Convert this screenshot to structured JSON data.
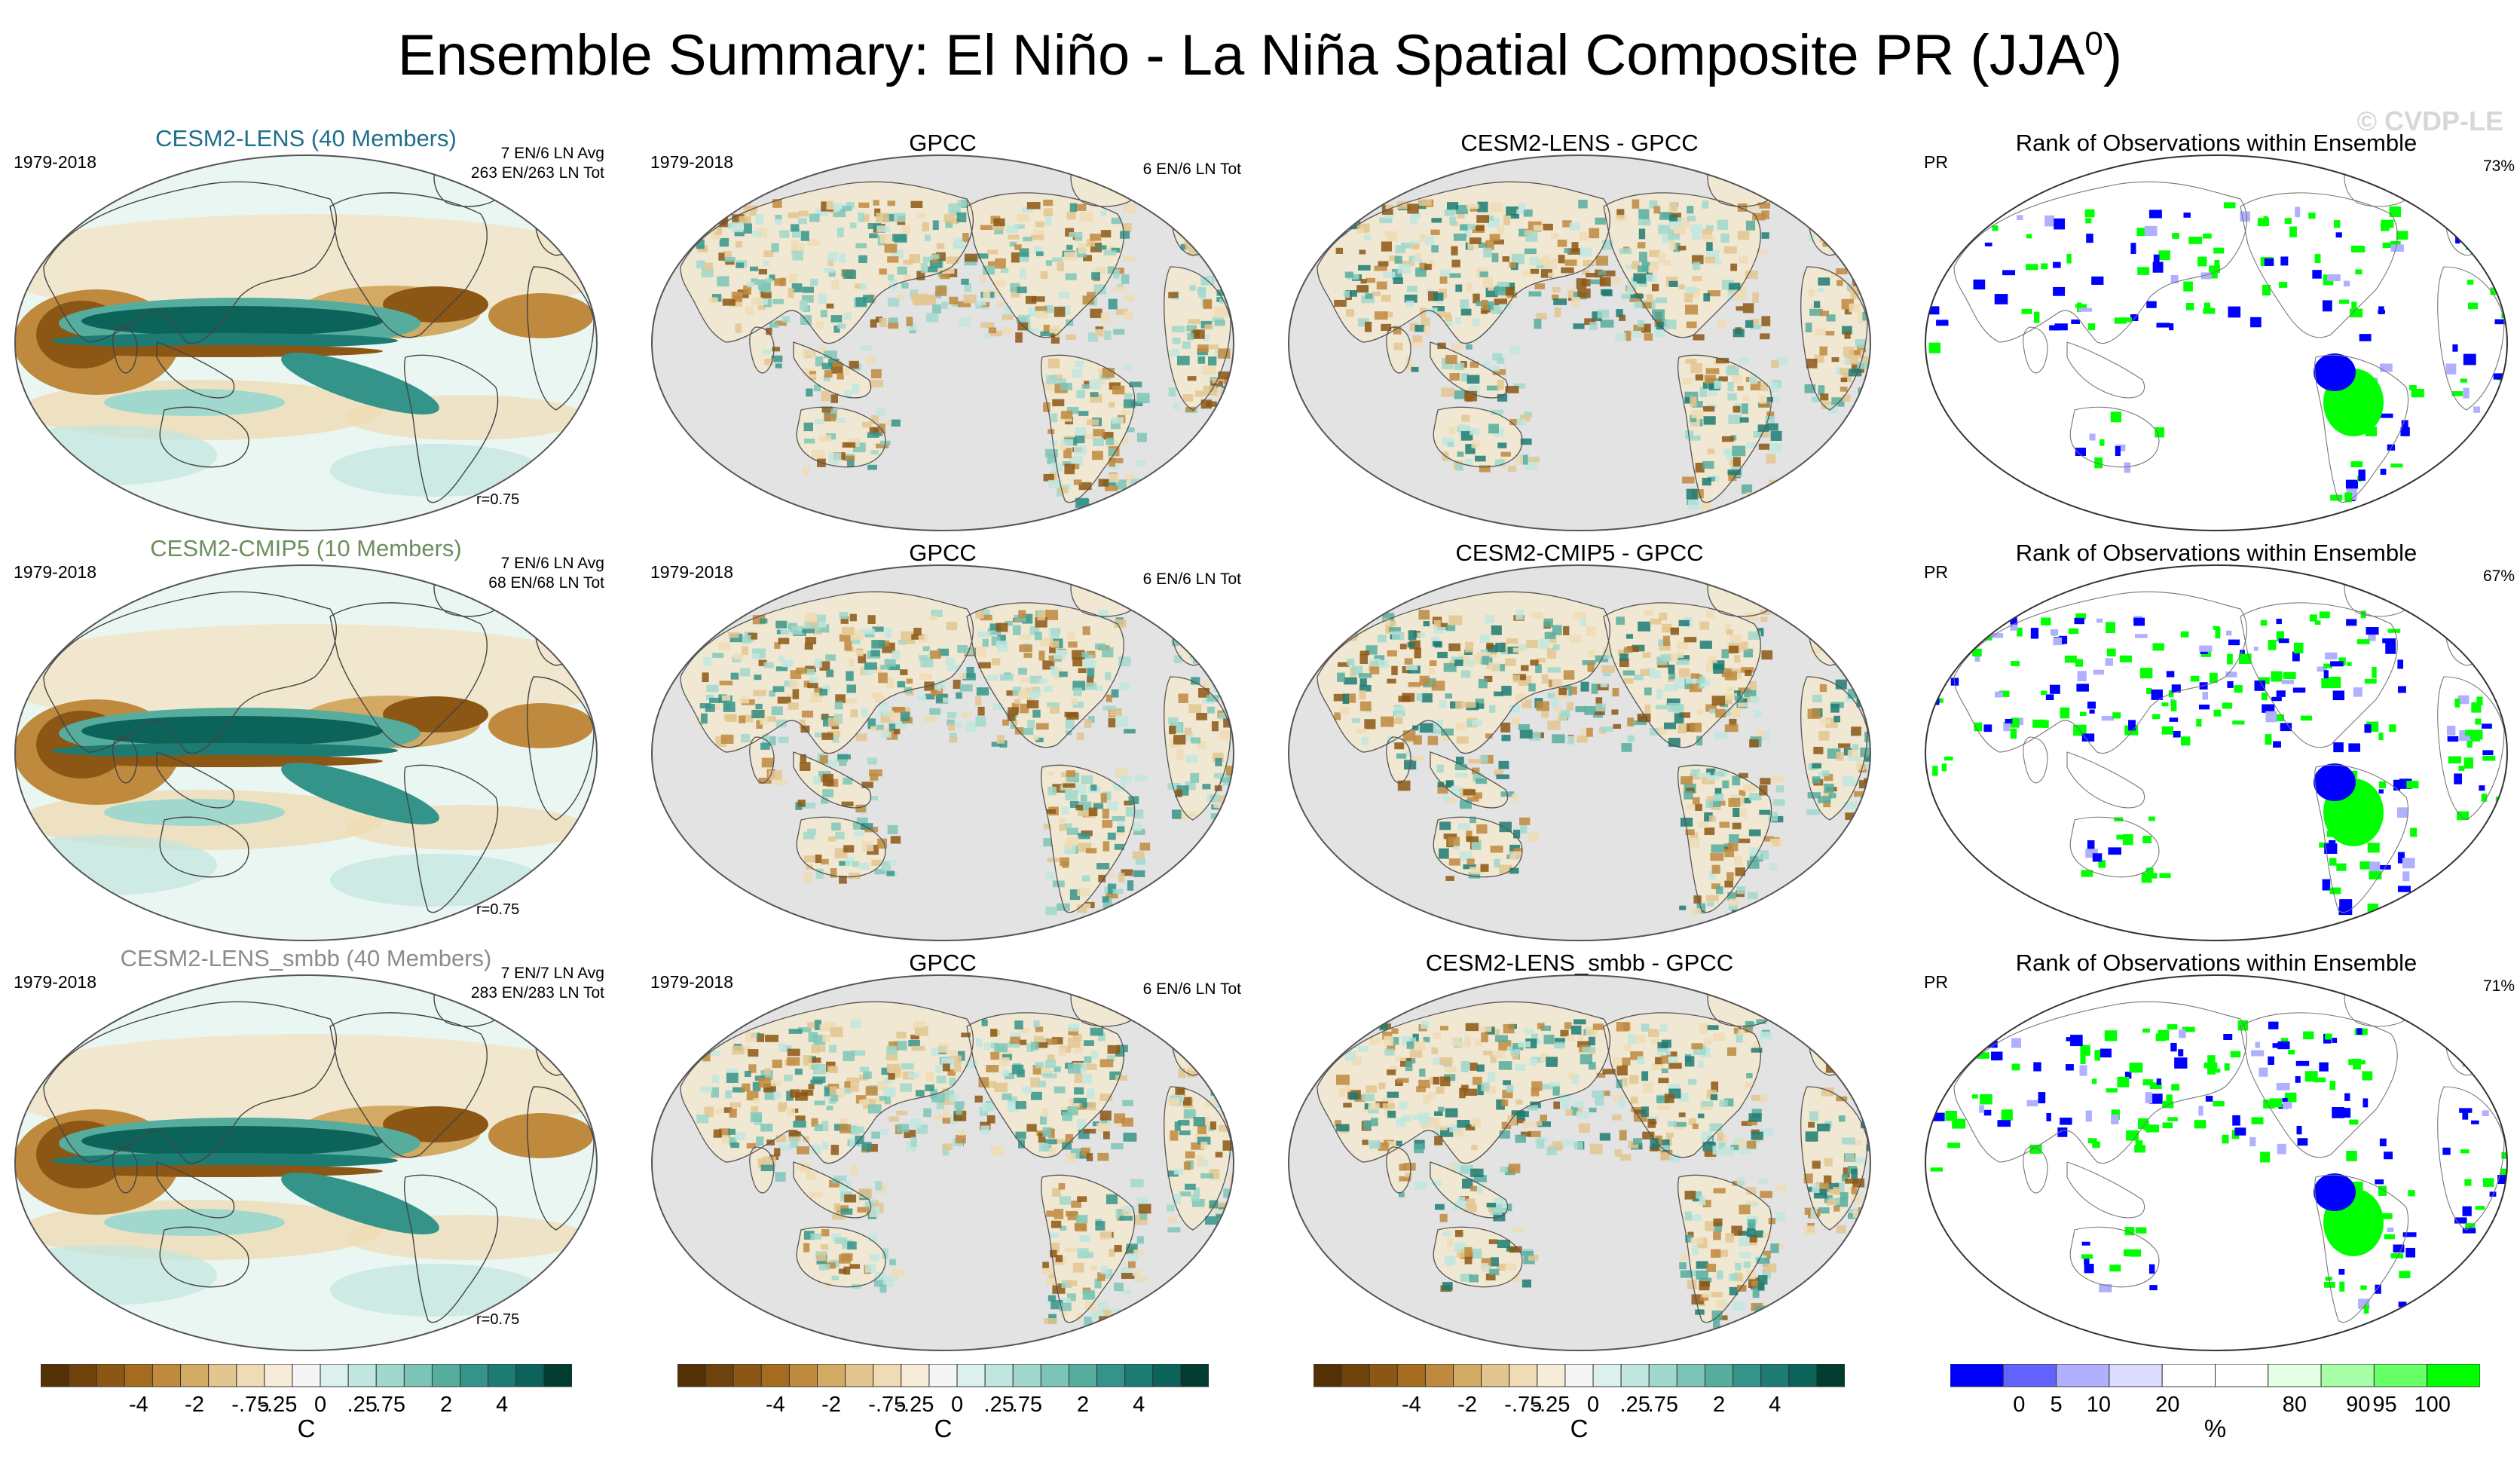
{
  "title": {
    "text": "Ensemble Summary: El Niño - La Niña Spatial Composite PR (JJA",
    "sup": "0",
    "close": ")"
  },
  "watermark": "© CVDP-LE",
  "rows": [
    {
      "model_title": "CESM2-LENS (40 Members)",
      "model_title_color": "#1f6f8b",
      "period": "1979-2018",
      "stats1": "7 EN/6 LN Avg",
      "stats2": "263 EN/263 LN Tot",
      "r": "r=0.75",
      "obs_title": "GPCC",
      "obs_period": "1979-2018",
      "obs_stats": "6 EN/6 LN Tot",
      "diff_title": "CESM2-LENS - GPCC",
      "rank_title": "Rank of Observations within Ensemble",
      "rank_var": "PR",
      "rank_pct": "73%"
    },
    {
      "model_title": "CESM2-CMIP5 (10 Members)",
      "model_title_color": "#6b8f5e",
      "period": "1979-2018",
      "stats1": "7 EN/6 LN Avg",
      "stats2": "68 EN/68 LN Tot",
      "r": "r=0.75",
      "obs_title": "GPCC",
      "obs_period": "1979-2018",
      "obs_stats": "6 EN/6 LN Tot",
      "diff_title": "CESM2-CMIP5 - GPCC",
      "rank_title": "Rank of Observations within Ensemble",
      "rank_var": "PR",
      "rank_pct": "67%"
    },
    {
      "model_title": "CESM2-LENS_smbb (40 Members)",
      "model_title_color": "#8c8c8c",
      "period": "1979-2018",
      "stats1": "7 EN/7 LN Avg",
      "stats2": "283 EN/283 LN Tot",
      "r": "r=0.75",
      "obs_title": "GPCC",
      "obs_period": "1979-2018",
      "obs_stats": "6 EN/6 LN Tot",
      "diff_title": "CESM2-LENS_smbb - GPCC",
      "rank_title": "Rank of Observations within Ensemble",
      "rank_var": "PR",
      "rank_pct": "71%"
    }
  ],
  "colorbars": {
    "brbg": {
      "colors": [
        "#543005",
        "#6f420c",
        "#8c5714",
        "#a56b1f",
        "#bf8a3e",
        "#d3aa64",
        "#e3c68f",
        "#efdcb4",
        "#f6ecd8",
        "#f5f5f5",
        "#dcf0ed",
        "#c1e6df",
        "#a0d8cd",
        "#7cc5b6",
        "#56ad9e",
        "#35948a",
        "#1c7b72",
        "#0c6359",
        "#003c30"
      ],
      "ticks": [
        "-4",
        "-2",
        "-.75",
        "-.25",
        "0",
        ".25",
        ".75",
        "2",
        "4"
      ],
      "unit": "C"
    },
    "rank": {
      "colors": [
        "#0000ff",
        "#6262ff",
        "#b0b0ff",
        "#dcdcff",
        "#ffffff",
        "#ffffff",
        "#e4ffe4",
        "#a6ffa6",
        "#66ff66",
        "#00ff00"
      ],
      "ticks": [
        "0",
        "5",
        "10",
        "20",
        "80",
        "90",
        "95",
        "100"
      ],
      "unit": "%"
    }
  },
  "palette": {
    "ocean_gray": "#e3e3e3",
    "outline": "#555555",
    "map_tan": "#e8c98c",
    "map_brown": "#8c5a1a",
    "map_teal": "#2c8f83",
    "map_darkteal": "#0b5a50",
    "rank_blue": "#0000ff",
    "rank_green": "#00ff00"
  }
}
